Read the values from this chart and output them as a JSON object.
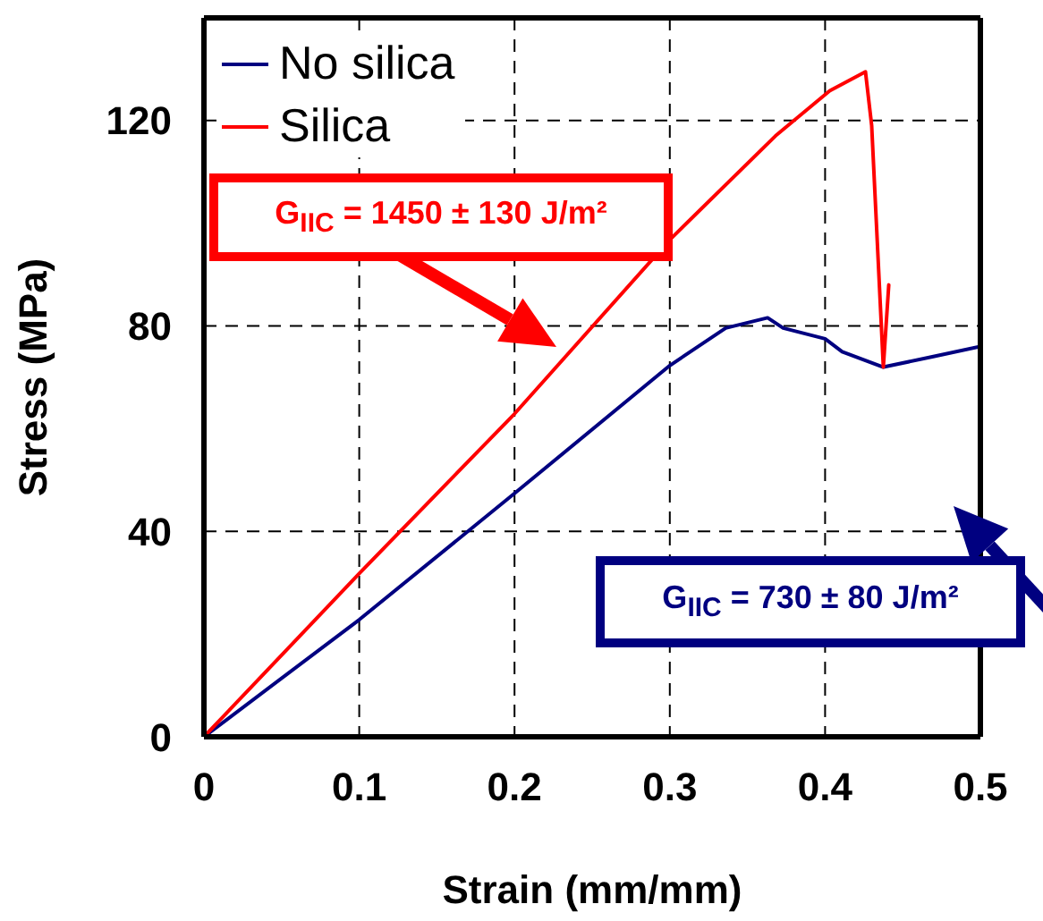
{
  "chart_data": {
    "type": "line",
    "xlabel": "Strain (mm/mm)",
    "ylabel": "Stress (MPa)",
    "xlim": [
      0,
      0.5
    ],
    "xticks": [
      0,
      0.1,
      0.2,
      0.3,
      0.4,
      0.5
    ],
    "ylim": [
      0,
      140
    ],
    "yticks": [
      0,
      40,
      80,
      120
    ],
    "grid": true,
    "legend": "top left",
    "series": [
      {
        "name": "No silica",
        "color": "#000080",
        "x": [
          0,
          0.1,
          0.2,
          0.3,
          0.336,
          0.363,
          0.373,
          0.4,
          0.411,
          0.4375,
          0.469,
          0.5
        ],
        "values": [
          0,
          22.8,
          47.4,
          72.3,
          79.6,
          81.6,
          79.6,
          77.5,
          75,
          72,
          74,
          76
        ]
      },
      {
        "name": "Silica",
        "color": "#ff0000",
        "x": [
          0,
          0.1,
          0.2,
          0.3,
          0.368,
          0.403,
          0.426,
          0.43,
          0.4375,
          0.441,
          0.4375
        ],
        "values": [
          0,
          31.8,
          62.9,
          96.8,
          117,
          125.8,
          129.5,
          119,
          72,
          88,
          72
        ]
      }
    ],
    "annotations": [
      "G$_{IIC}$ = 1450 ± 130 J/m²",
      "G$_{IIC}$ = 730 ± 80 J/m²"
    ]
  }
}
